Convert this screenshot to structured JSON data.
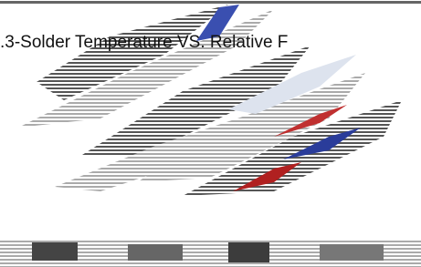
{
  "caption": ".3-Solder Temperature VS. Relative F"
}
